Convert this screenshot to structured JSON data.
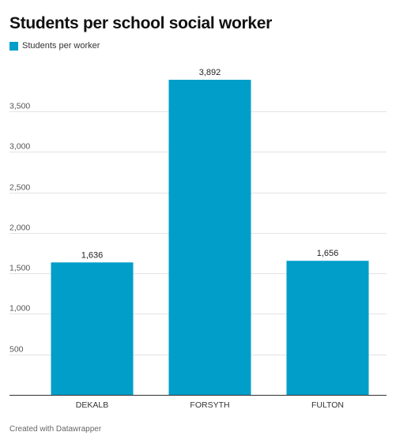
{
  "title": "Students per school social worker",
  "legend": {
    "label": "Students per worker",
    "color": "#009ec9"
  },
  "footer": "Created with Datawrapper",
  "chart_data": {
    "type": "bar",
    "title": "Students per school social worker",
    "xlabel": "",
    "ylabel": "",
    "categories": [
      "DEKALB",
      "FORSYTH",
      "FULTON"
    ],
    "series": [
      {
        "name": "Students per worker",
        "values": [
          1636,
          3892,
          1656
        ],
        "color": "#009ec9"
      }
    ],
    "value_labels": [
      "1,636",
      "3,892",
      "1,656"
    ],
    "ylim": [
      0,
      3892
    ],
    "yticks": [
      500,
      1000,
      1500,
      2000,
      2500,
      3000,
      3500
    ],
    "ytick_labels": [
      "500",
      "1,000",
      "1,500",
      "2,000",
      "2,500",
      "3,000",
      "3,500"
    ],
    "grid": true,
    "legend_position": "top-left"
  }
}
